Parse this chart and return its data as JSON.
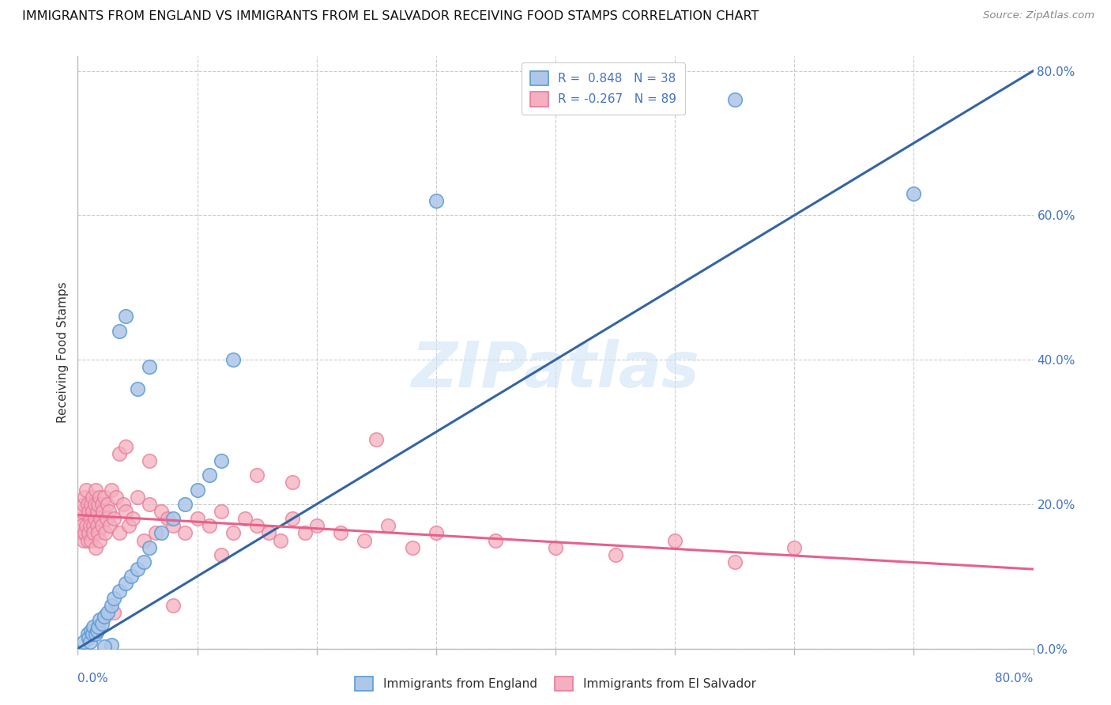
{
  "title": "IMMIGRANTS FROM ENGLAND VS IMMIGRANTS FROM EL SALVADOR RECEIVING FOOD STAMPS CORRELATION CHART",
  "source": "Source: ZipAtlas.com",
  "ylabel": "Receiving Food Stamps",
  "xlim": [
    0.0,
    0.8
  ],
  "ylim": [
    0.0,
    0.82
  ],
  "england_fill_color": "#aec6e8",
  "england_edge_color": "#5b9bd5",
  "el_salvador_fill_color": "#f4afc0",
  "el_salvador_edge_color": "#e87a96",
  "england_line_color": "#3465a4",
  "el_salvador_line_color": "#e8608a",
  "england_R": 0.848,
  "england_N": 38,
  "el_salvador_R": -0.267,
  "el_salvador_N": 89,
  "watermark": "ZIPatlas",
  "background_color": "#ffffff",
  "grid_color": "#cccccc",
  "right_ytick_values": [
    0.0,
    0.2,
    0.4,
    0.6,
    0.8
  ],
  "title_fontsize": 11.5,
  "axis_label_color": "#4472c4",
  "text_color": "#333333",
  "eng_line_x0": 0.0,
  "eng_line_y0": 0.0,
  "eng_line_x1": 0.8,
  "eng_line_y1": 0.8,
  "sal_line_x0": 0.0,
  "sal_line_y0": 0.185,
  "sal_line_x1": 0.8,
  "sal_line_y1": 0.11,
  "england_points_x": [
    0.005,
    0.008,
    0.009,
    0.01,
    0.011,
    0.012,
    0.013,
    0.015,
    0.016,
    0.017,
    0.018,
    0.02,
    0.022,
    0.025,
    0.028,
    0.03,
    0.035,
    0.04,
    0.045,
    0.05,
    0.055,
    0.06,
    0.07,
    0.08,
    0.09,
    0.1,
    0.11,
    0.12,
    0.035,
    0.04,
    0.05,
    0.06,
    0.13,
    0.3,
    0.55,
    0.7,
    0.028,
    0.022
  ],
  "england_points_y": [
    0.01,
    0.02,
    0.015,
    0.01,
    0.025,
    0.02,
    0.03,
    0.02,
    0.025,
    0.03,
    0.04,
    0.035,
    0.045,
    0.05,
    0.06,
    0.07,
    0.08,
    0.09,
    0.1,
    0.11,
    0.12,
    0.14,
    0.16,
    0.18,
    0.2,
    0.22,
    0.24,
    0.26,
    0.44,
    0.46,
    0.36,
    0.39,
    0.4,
    0.62,
    0.76,
    0.63,
    0.005,
    0.003
  ],
  "salvador_points_x": [
    0.002,
    0.003,
    0.004,
    0.004,
    0.005,
    0.005,
    0.006,
    0.006,
    0.007,
    0.007,
    0.008,
    0.008,
    0.009,
    0.009,
    0.01,
    0.01,
    0.011,
    0.011,
    0.012,
    0.012,
    0.013,
    0.013,
    0.014,
    0.014,
    0.015,
    0.015,
    0.016,
    0.016,
    0.017,
    0.017,
    0.018,
    0.018,
    0.019,
    0.02,
    0.02,
    0.021,
    0.022,
    0.023,
    0.024,
    0.025,
    0.026,
    0.027,
    0.028,
    0.03,
    0.032,
    0.035,
    0.038,
    0.04,
    0.043,
    0.046,
    0.05,
    0.055,
    0.06,
    0.065,
    0.07,
    0.075,
    0.08,
    0.09,
    0.1,
    0.11,
    0.12,
    0.13,
    0.14,
    0.15,
    0.16,
    0.17,
    0.18,
    0.19,
    0.2,
    0.22,
    0.24,
    0.26,
    0.28,
    0.3,
    0.35,
    0.4,
    0.45,
    0.5,
    0.55,
    0.6,
    0.035,
    0.04,
    0.06,
    0.15,
    0.25,
    0.18,
    0.12,
    0.08,
    0.03
  ],
  "salvador_points_y": [
    0.16,
    0.18,
    0.17,
    0.19,
    0.15,
    0.2,
    0.16,
    0.21,
    0.17,
    0.22,
    0.15,
    0.2,
    0.16,
    0.19,
    0.18,
    0.17,
    0.2,
    0.15,
    0.19,
    0.21,
    0.17,
    0.16,
    0.2,
    0.18,
    0.22,
    0.14,
    0.19,
    0.17,
    0.2,
    0.16,
    0.21,
    0.15,
    0.18,
    0.2,
    0.17,
    0.19,
    0.21,
    0.16,
    0.18,
    0.2,
    0.19,
    0.17,
    0.22,
    0.18,
    0.21,
    0.16,
    0.2,
    0.19,
    0.17,
    0.18,
    0.21,
    0.15,
    0.2,
    0.16,
    0.19,
    0.18,
    0.17,
    0.16,
    0.18,
    0.17,
    0.19,
    0.16,
    0.18,
    0.17,
    0.16,
    0.15,
    0.18,
    0.16,
    0.17,
    0.16,
    0.15,
    0.17,
    0.14,
    0.16,
    0.15,
    0.14,
    0.13,
    0.15,
    0.12,
    0.14,
    0.27,
    0.28,
    0.26,
    0.24,
    0.29,
    0.23,
    0.13,
    0.06,
    0.05
  ]
}
